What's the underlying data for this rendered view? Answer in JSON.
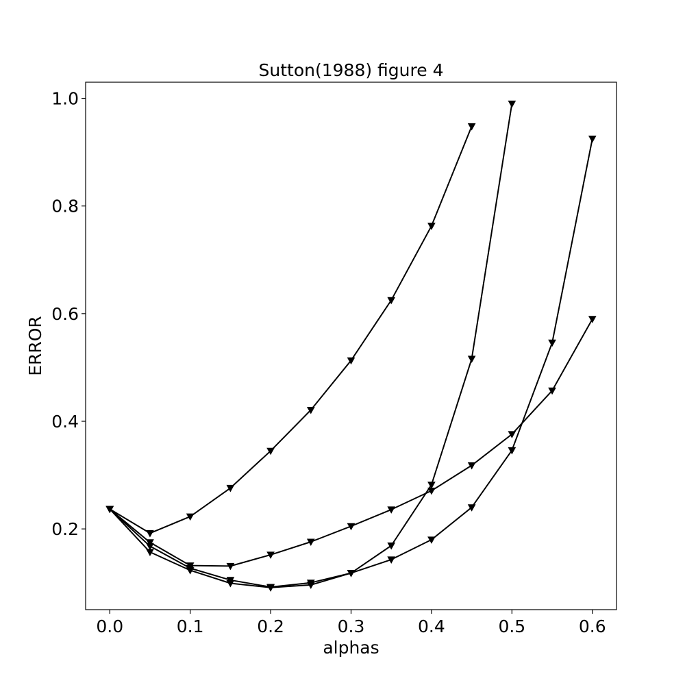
{
  "chart_data": {
    "type": "line",
    "title": "Sutton(1988) figure 4",
    "xlabel": "alphas",
    "ylabel": "ERROR",
    "xlim": [
      -0.03,
      0.63
    ],
    "ylim": [
      0.05,
      1.03
    ],
    "xticks": [
      0.0,
      0.1,
      0.2,
      0.3,
      0.4,
      0.5,
      0.6
    ],
    "xtick_labels": [
      "0.0",
      "0.1",
      "0.2",
      "0.3",
      "0.4",
      "0.5",
      "0.6"
    ],
    "yticks": [
      0.2,
      0.4,
      0.6,
      0.8,
      1.0
    ],
    "ytick_labels": [
      "0.2",
      "0.4",
      "0.6",
      "0.8",
      "1.0"
    ],
    "grid": false,
    "marker": "triangle-down",
    "color": "#000000",
    "series": [
      {
        "x": [
          0.0,
          0.05,
          0.1,
          0.15,
          0.2,
          0.25,
          0.3,
          0.35,
          0.4,
          0.45
        ],
        "values": [
          0.237,
          0.192,
          0.223,
          0.276,
          0.345,
          0.421,
          0.513,
          0.625,
          0.763,
          0.948
        ]
      },
      {
        "x": [
          0.0,
          0.05,
          0.1,
          0.15,
          0.2,
          0.25,
          0.3,
          0.35,
          0.4,
          0.45,
          0.5
        ],
        "values": [
          0.237,
          0.168,
          0.127,
          0.105,
          0.092,
          0.1,
          0.118,
          0.169,
          0.282,
          0.516,
          0.99
        ]
      },
      {
        "x": [
          0.0,
          0.05,
          0.1,
          0.15,
          0.2,
          0.25,
          0.3,
          0.35,
          0.4,
          0.45,
          0.5,
          0.55,
          0.6
        ],
        "values": [
          0.237,
          0.157,
          0.123,
          0.099,
          0.091,
          0.096,
          0.118,
          0.143,
          0.18,
          0.24,
          0.346,
          0.546,
          0.925
        ]
      },
      {
        "x": [
          0.0,
          0.05,
          0.1,
          0.15,
          0.2,
          0.25,
          0.3,
          0.35,
          0.4,
          0.45,
          0.5,
          0.55,
          0.6
        ],
        "values": [
          0.237,
          0.175,
          0.132,
          0.131,
          0.152,
          0.176,
          0.205,
          0.236,
          0.271,
          0.318,
          0.376,
          0.457,
          0.59
        ]
      }
    ]
  }
}
